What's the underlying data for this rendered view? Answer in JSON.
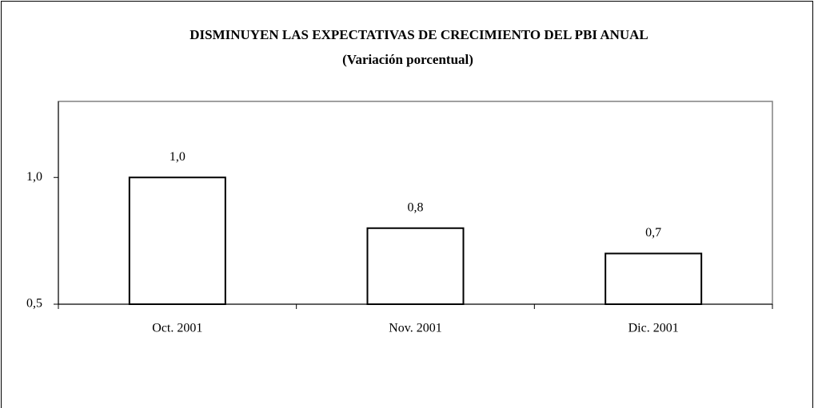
{
  "chart_data": {
    "type": "bar",
    "title": "DISMINUYEN LAS EXPECTATIVAS DE CRECIMIENTO DEL PBI ANUAL",
    "subtitle": "(Variación porcentual)",
    "categories": [
      "Oct. 2001",
      "Nov. 2001",
      "Dic. 2001"
    ],
    "values": [
      1.0,
      0.8,
      0.7
    ],
    "value_labels": [
      "1,0",
      "0,8",
      "0,7"
    ],
    "color": "#ffffff",
    "ylim": [
      0.5,
      1.3
    ],
    "yticks": [
      {
        "value": 0.5,
        "label": "0,5"
      },
      {
        "value": 1.0,
        "label": "1,0"
      }
    ],
    "grid": false
  }
}
